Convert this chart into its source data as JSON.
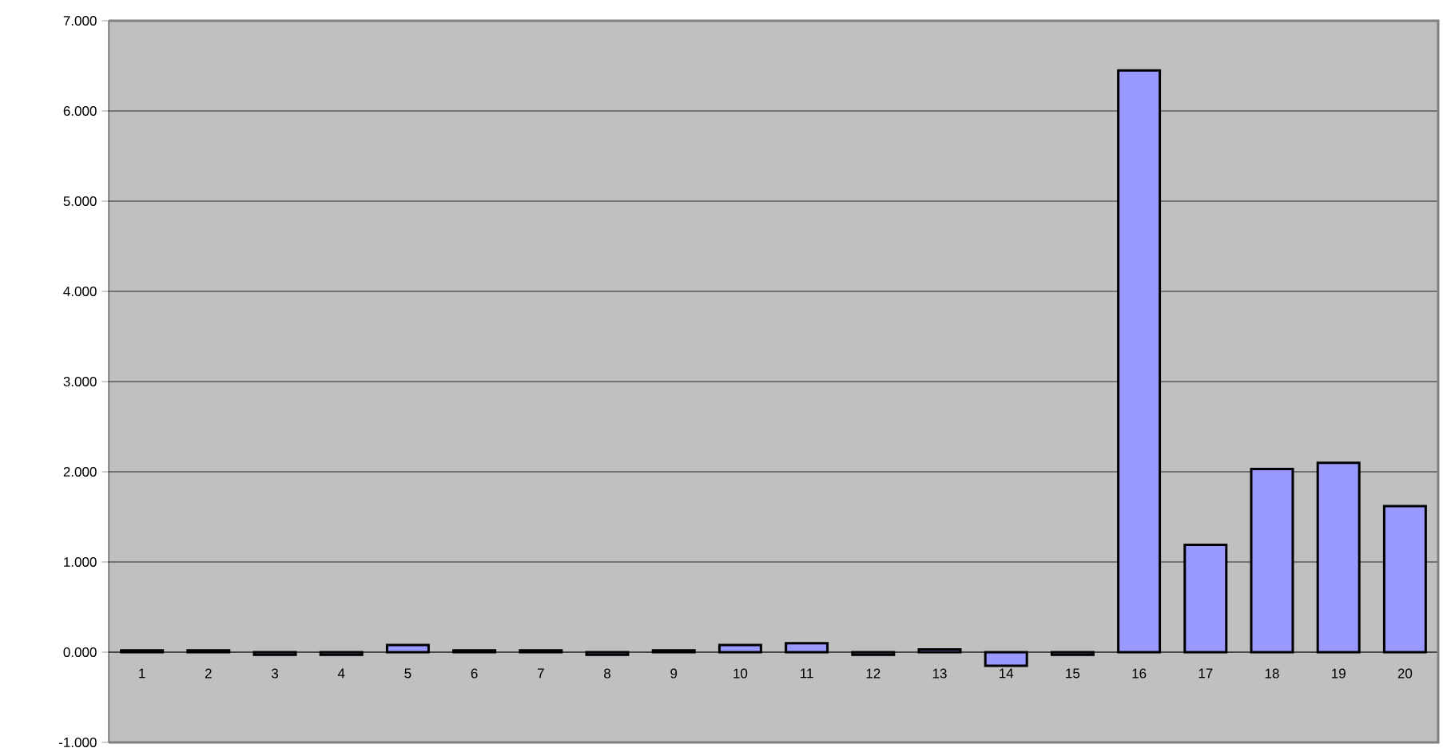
{
  "chart_data": {
    "type": "bar",
    "categories": [
      "1",
      "2",
      "3",
      "4",
      "5",
      "6",
      "7",
      "8",
      "9",
      "10",
      "11",
      "12",
      "13",
      "14",
      "15",
      "16",
      "17",
      "18",
      "19",
      "20"
    ],
    "values": [
      0.02,
      0.02,
      -0.03,
      -0.03,
      0.08,
      0.02,
      0.02,
      -0.03,
      0.02,
      0.08,
      0.1,
      -0.03,
      0.03,
      -0.15,
      -0.03,
      6.45,
      1.19,
      2.03,
      2.1,
      1.62
    ],
    "color": "#9999ff",
    "ylim": [
      -1,
      7
    ],
    "yticks": [
      {
        "value": -1,
        "label": "-1.000"
      },
      {
        "value": 0,
        "label": "0.000"
      },
      {
        "value": 1,
        "label": "1.000"
      },
      {
        "value": 2,
        "label": "2.000"
      },
      {
        "value": 3,
        "label": "3.000"
      },
      {
        "value": 4,
        "label": "4.000"
      },
      {
        "value": 5,
        "label": "5.000"
      },
      {
        "value": 6,
        "label": "6.000"
      },
      {
        "value": 7,
        "label": "7.000"
      }
    ],
    "grid": "y"
  }
}
